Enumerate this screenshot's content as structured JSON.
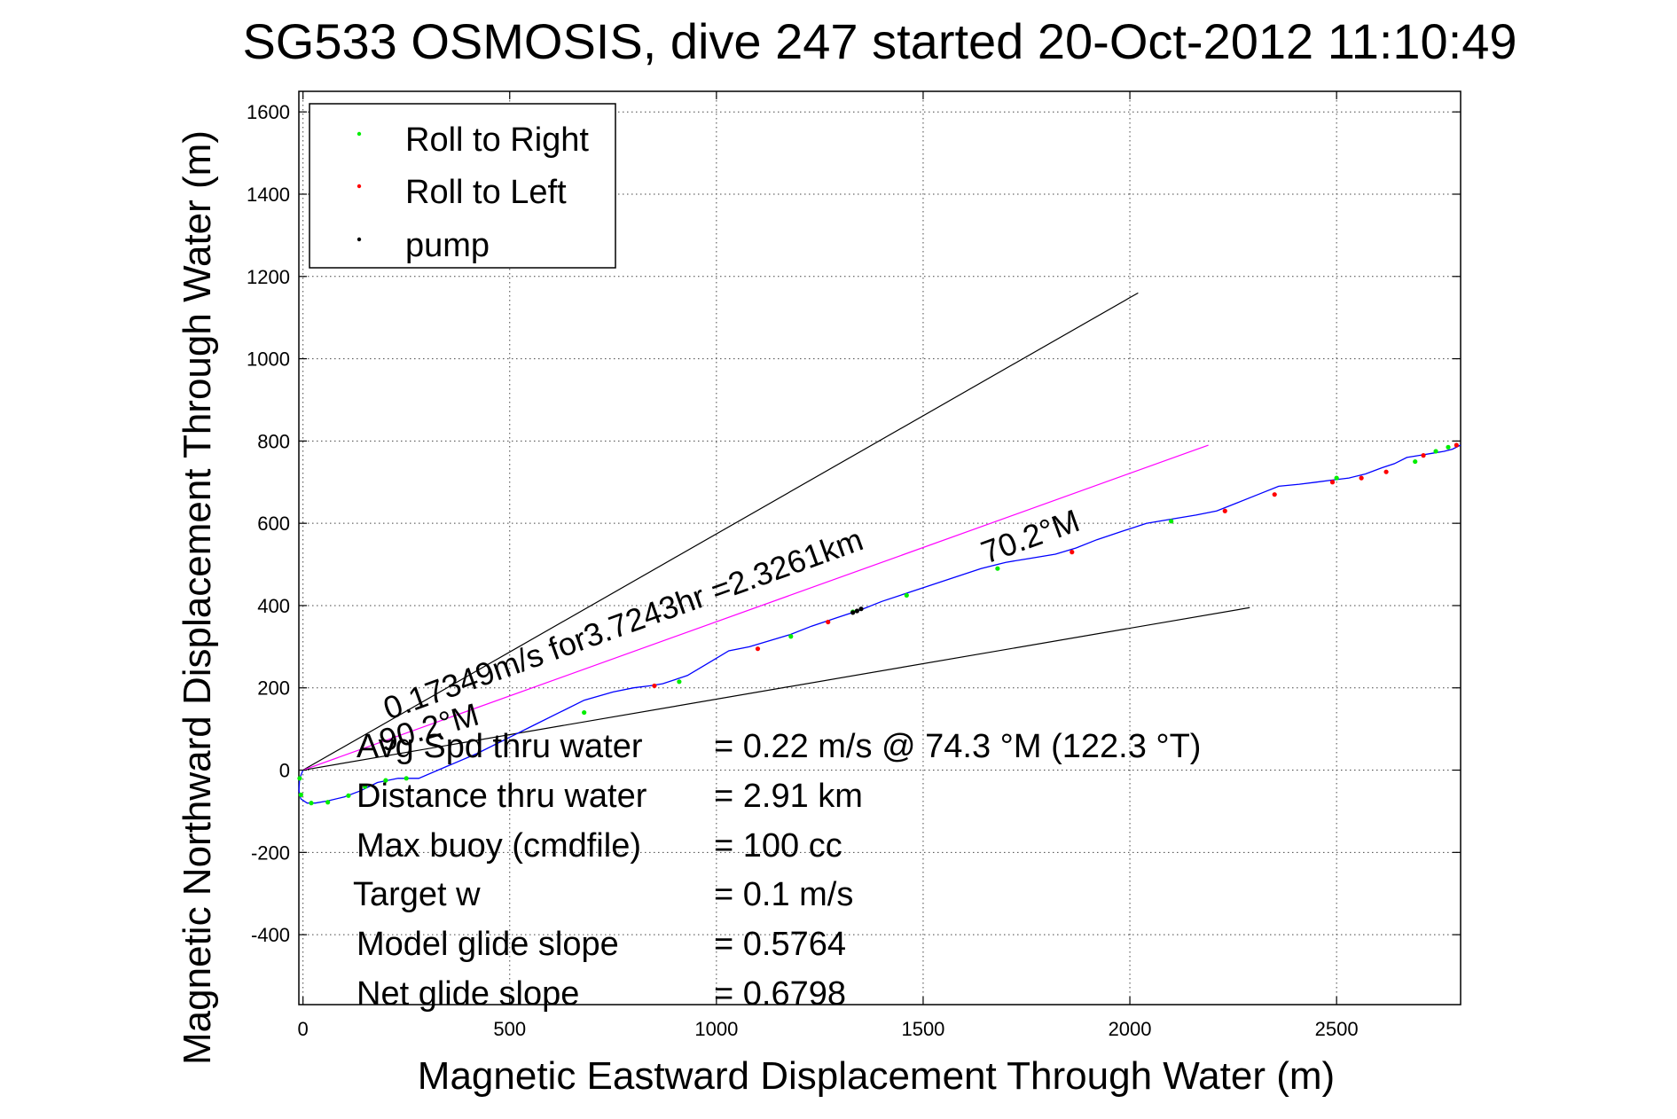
{
  "chart_data": {
    "type": "line",
    "title": "SG533 OSMOSIS, dive 247 started 20-Oct-2012 11:10:49",
    "xlabel": "Magnetic Eastward Displacement Through Water (m)",
    "ylabel": "Magnetic Northward Displacement Through Water (m)",
    "xlim": [
      -10,
      2800
    ],
    "ylim": [
      -570,
      1650
    ],
    "xticks": [
      0,
      500,
      1000,
      1500,
      2000,
      2500
    ],
    "yticks": [
      -400,
      -200,
      0,
      200,
      400,
      600,
      800,
      1000,
      1200,
      1400,
      1600
    ],
    "grid": true,
    "legend_position": "top-left",
    "legend": [
      {
        "label": "Roll to Right",
        "color": "#00ee00"
      },
      {
        "label": "Roll to Left",
        "color": "#ff0000"
      },
      {
        "label": "pump",
        "color": "#000000"
      }
    ],
    "colors": {
      "track": "#0000ff",
      "roll_right": "#00ee00",
      "roll_left": "#ff0000",
      "pump": "#000000",
      "cone_lines": "#000000",
      "heading_line": "#ff00ff"
    },
    "series": [
      {
        "kind": "track",
        "x": [
          0,
          -8,
          -10,
          -5,
          10,
          30,
          60,
          100,
          140,
          180,
          230,
          280,
          350,
          420,
          500,
          560,
          620,
          680,
          750,
          800,
          840,
          870,
          900,
          930,
          980,
          1030,
          1080,
          1130,
          1180,
          1230,
          1290,
          1350,
          1400,
          1460,
          1520,
          1580,
          1640,
          1700,
          1760,
          1820,
          1870,
          1920,
          1980,
          2040,
          2100,
          2160,
          2210,
          2260,
          2310,
          2360,
          2410,
          2450,
          2490,
          2530,
          2570,
          2610,
          2640,
          2670,
          2700,
          2730,
          2760,
          2780,
          2800
        ],
        "y": [
          0,
          -20,
          -50,
          -70,
          -80,
          -80,
          -75,
          -65,
          -50,
          -30,
          -20,
          -20,
          10,
          40,
          80,
          110,
          140,
          170,
          190,
          200,
          205,
          210,
          220,
          230,
          260,
          290,
          300,
          315,
          330,
          350,
          370,
          390,
          410,
          430,
          450,
          470,
          490,
          505,
          515,
          525,
          540,
          560,
          580,
          600,
          610,
          620,
          630,
          650,
          670,
          690,
          695,
          700,
          705,
          710,
          720,
          735,
          745,
          760,
          765,
          770,
          775,
          780,
          790
        ]
      },
      {
        "name": "Roll to Right",
        "kind": "points",
        "x": [
          -8,
          -5,
          20,
          60,
          110,
          150,
          200,
          250,
          680,
          910,
          1180,
          1330,
          1460,
          1680,
          2100,
          2500,
          2690,
          2740,
          2770
        ],
        "y": [
          -20,
          -60,
          -80,
          -78,
          -62,
          -40,
          -25,
          -20,
          140,
          215,
          325,
          385,
          425,
          490,
          605,
          710,
          750,
          775,
          785
        ]
      },
      {
        "name": "Roll to Left",
        "kind": "points",
        "x": [
          850,
          1100,
          1270,
          1860,
          2230,
          2350,
          2490,
          2560,
          2620,
          2710,
          2790
        ],
        "y": [
          205,
          295,
          360,
          530,
          630,
          670,
          700,
          710,
          725,
          765,
          790
        ]
      },
      {
        "name": "pump",
        "kind": "points",
        "x": [
          1330,
          1340,
          1350
        ],
        "y": [
          383,
          387,
          392
        ]
      }
    ],
    "reference_lines": [
      {
        "kind": "cone",
        "x": [
          0,
          2020
        ],
        "y": [
          0,
          1160
        ]
      },
      {
        "kind": "cone",
        "x": [
          0,
          2290
        ],
        "y": [
          0,
          395
        ]
      },
      {
        "kind": "heading",
        "x": [
          0,
          2190
        ],
        "y": [
          0,
          790
        ]
      }
    ],
    "annotations": [
      {
        "text": "0.17349m/s for3.7243hr =2.3261km"
      },
      {
        "text": "70.2°M"
      },
      {
        "text": "90.2°M"
      }
    ],
    "stats": [
      {
        "label": "Avg Spd thru water",
        "value": "=  0.22 m/s @  74.3 °M (122.3 °T)"
      },
      {
        "label": "Distance thru water",
        "value": "=  2.91 km"
      },
      {
        "label": "Max buoy (cmdfile)",
        "value": "= 100 cc"
      },
      {
        "label": "Target w",
        "value": "= 0.1 m/s"
      },
      {
        "label": "Model glide slope",
        "value": "= 0.5764"
      },
      {
        "label": "Net glide slope",
        "value": "= 0.6798"
      }
    ]
  }
}
